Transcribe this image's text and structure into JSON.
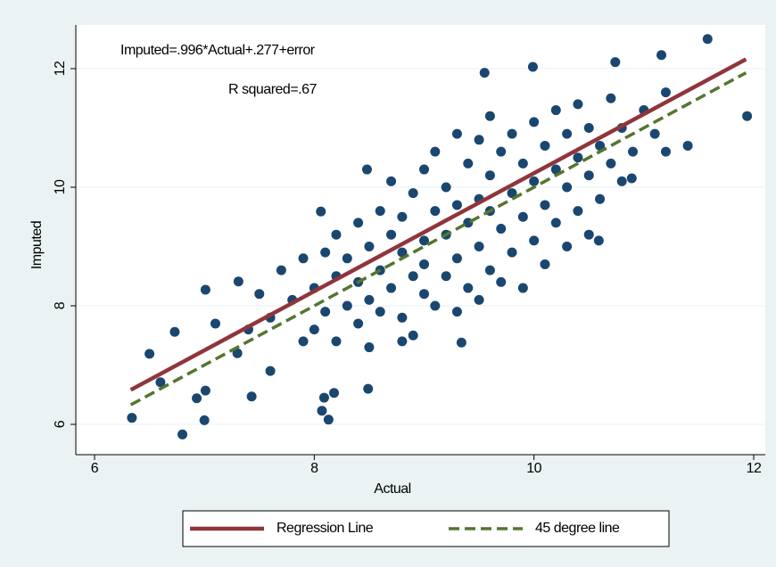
{
  "chart_data": {
    "type": "scatter",
    "xlabel": "Actual",
    "ylabel": "Imputed",
    "annotations": [
      "Imputed=.996*Actual+.277+error",
      "R squared=.67"
    ],
    "xlim": [
      6,
      12
    ],
    "ylim": [
      6,
      12
    ],
    "xticks": [
      6,
      8,
      10,
      12
    ],
    "yticks": [
      6,
      8,
      10,
      12
    ],
    "grid": true,
    "points": {
      "color": "#1a476f",
      "x": [
        8.0,
        8.0,
        8.1,
        8.1,
        8.2,
        8.2,
        8.2,
        8.3,
        8.3,
        8.4,
        8.4,
        8.4,
        8.5,
        8.5,
        8.5,
        8.6,
        8.6,
        8.6,
        8.7,
        8.7,
        8.7,
        8.8,
        8.8,
        8.8,
        8.9,
        8.9,
        8.9,
        9.0,
        9.0,
        9.0,
        9.0,
        9.1,
        9.1,
        9.1,
        9.2,
        9.2,
        9.2,
        9.3,
        9.3,
        9.3,
        9.3,
        9.4,
        9.4,
        9.4,
        9.5,
        9.5,
        9.5,
        9.5,
        9.6,
        9.6,
        9.6,
        9.6,
        9.7,
        9.7,
        9.7,
        9.8,
        9.8,
        9.8,
        9.9,
        9.9,
        9.9,
        10.0,
        10.0,
        10.0,
        10.1,
        10.1,
        10.1,
        10.2,
        10.2,
        10.2,
        10.3,
        10.3,
        10.3,
        10.4,
        10.4,
        10.4,
        10.5,
        10.5,
        10.5,
        10.6,
        10.6,
        10.7,
        10.7,
        10.8,
        10.8,
        10.9,
        11.0,
        11.1,
        11.2,
        7.8,
        7.9,
        7.7,
        7.6,
        7.5,
        7.9,
        7.4,
        7.3,
        7.6,
        6.34,
        6.8,
        6.5,
        6.6,
        6.73,
        7.01,
        7.0,
        7.01,
        6.93,
        7.31,
        7.1,
        7.43,
        8.13,
        8.07,
        8.09,
        8.18,
        8.49,
        8.8,
        9.34,
        11.94,
        11.58,
        11.16,
        10.74,
        9.99,
        9.55,
        8.48,
        8.06,
        10.59,
        11.2,
        11.4,
        10.89
      ],
      "values": [
        8.3,
        7.6,
        8.9,
        7.9,
        8.5,
        9.2,
        7.4,
        8.0,
        8.8,
        9.4,
        7.7,
        8.4,
        9.0,
        8.1,
        7.3,
        9.6,
        8.6,
        7.9,
        9.2,
        8.3,
        10.1,
        8.9,
        7.8,
        9.5,
        8.5,
        9.9,
        7.5,
        9.1,
        8.2,
        10.3,
        8.7,
        9.6,
        8.0,
        10.6,
        9.2,
        8.5,
        10.0,
        8.8,
        9.7,
        10.9,
        7.9,
        9.4,
        8.3,
        10.4,
        9.0,
        9.8,
        10.8,
        8.1,
        9.6,
        8.6,
        10.2,
        11.2,
        9.3,
        10.6,
        8.4,
        9.9,
        8.9,
        10.9,
        9.5,
        10.4,
        8.3,
        10.1,
        9.1,
        11.1,
        9.7,
        10.7,
        8.7,
        10.3,
        9.4,
        11.3,
        10.0,
        10.9,
        9.0,
        10.5,
        9.6,
        11.4,
        10.2,
        9.2,
        11.0,
        10.7,
        9.8,
        10.4,
        11.5,
        10.1,
        11.0,
        10.6,
        11.3,
        10.9,
        11.6,
        8.1,
        7.4,
        8.6,
        7.8,
        8.2,
        8.8,
        7.6,
        7.2,
        6.9,
        6.11,
        5.83,
        7.19,
        6.71,
        7.56,
        8.27,
        6.07,
        6.57,
        6.44,
        8.41,
        7.7,
        6.47,
        6.08,
        6.23,
        6.45,
        6.53,
        6.6,
        7.4,
        7.38,
        11.2,
        12.5,
        12.23,
        12.11,
        12.03,
        11.93,
        10.3,
        9.59,
        9.1,
        10.6,
        10.7,
        10.15
      ]
    },
    "series": [
      {
        "name": "Regression Line",
        "color": "#90353b",
        "dash": false,
        "x": [
          6.33,
          11.93
        ],
        "values": [
          6.582,
          12.159
        ]
      },
      {
        "name": "45 degree line",
        "color": "#55752f",
        "dash": true,
        "x": [
          6.33,
          11.93
        ],
        "values": [
          6.33,
          11.93
        ]
      }
    ]
  }
}
